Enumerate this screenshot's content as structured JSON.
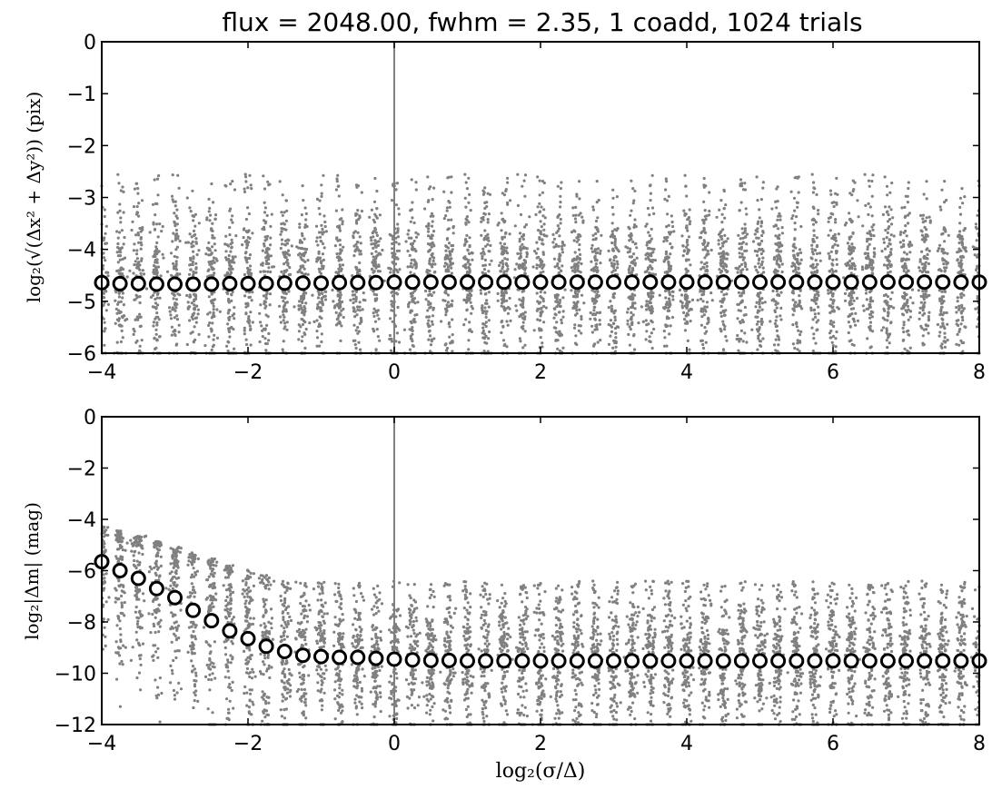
{
  "title": "flux = 2048.00, fwhm = 2.35, 1 coadd, 1024 trials",
  "colors": {
    "scatter": "#808080",
    "marker_edge": "#000000",
    "marker_fill": "#ffffff",
    "vline": "#808080"
  },
  "chart_data": [
    {
      "type": "scatter",
      "title": "flux = 2048.00, fwhm = 2.35, 1 coadd, 1024 trials",
      "xlabel": "log₂(σ/Δ)",
      "ylabel": "log₂(√(Δx² + Δy²)) (pix)",
      "xlim": [
        -4,
        8
      ],
      "ylim": [
        -6,
        0
      ],
      "x_ticks": [
        "−4",
        "−2",
        "0",
        "2",
        "4",
        "6",
        "8"
      ],
      "y_ticks": [
        "0",
        "−1",
        "−2",
        "−3",
        "−4",
        "−5",
        "−6"
      ],
      "vertical_line_x": 0,
      "grid": false,
      "series": [
        {
          "marker": "open-circle",
          "x": [
            -4.0,
            -3.75,
            -3.5,
            -3.25,
            -3.0,
            -2.75,
            -2.5,
            -2.25,
            -2.0,
            -1.75,
            -1.5,
            -1.25,
            -1.0,
            -0.75,
            -0.5,
            -0.25,
            0.0,
            0.25,
            0.5,
            0.75,
            1.0,
            1.25,
            1.5,
            1.75,
            2.0,
            2.25,
            2.5,
            2.75,
            3.0,
            3.25,
            3.5,
            3.75,
            4.0,
            4.25,
            4.5,
            4.75,
            5.0,
            5.25,
            5.5,
            5.75,
            6.0,
            6.25,
            6.5,
            6.75,
            7.0,
            7.25,
            7.5,
            7.75,
            8.0
          ],
          "y": [
            -4.64,
            -4.66,
            -4.66,
            -4.67,
            -4.67,
            -4.67,
            -4.67,
            -4.66,
            -4.66,
            -4.66,
            -4.65,
            -4.65,
            -4.65,
            -4.64,
            -4.64,
            -4.64,
            -4.63,
            -4.63,
            -4.63,
            -4.63,
            -4.63,
            -4.63,
            -4.63,
            -4.63,
            -4.63,
            -4.63,
            -4.63,
            -4.63,
            -4.63,
            -4.63,
            -4.63,
            -4.63,
            -4.63,
            -4.63,
            -4.63,
            -4.63,
            -4.63,
            -4.63,
            -4.63,
            -4.63,
            -4.63,
            -4.63,
            -4.63,
            -4.63,
            -4.63,
            -4.63,
            -4.63,
            -4.63,
            -4.63
          ]
        },
        {
          "marker": "dot-cloud",
          "x_centers": [
            -4.0,
            -3.75,
            -3.5,
            -3.25,
            -3.0,
            -2.75,
            -2.5,
            -2.25,
            -2.0,
            -1.75,
            -1.5,
            -1.25,
            -1.0,
            -0.75,
            -0.5,
            -0.25,
            0.0,
            0.25,
            0.5,
            0.75,
            1.0,
            1.25,
            1.5,
            1.75,
            2.0,
            2.25,
            2.5,
            2.75,
            3.0,
            3.25,
            3.5,
            3.75,
            4.0,
            4.25,
            4.5,
            4.75,
            5.0,
            5.25,
            5.5,
            5.75,
            6.0,
            6.25,
            6.5,
            6.75,
            7.0,
            7.25,
            7.5,
            7.75,
            8.0
          ],
          "y_center": -4.64,
          "y_spread": 0.75,
          "y_max": -2.55,
          "y_min": -6.0
        }
      ]
    },
    {
      "type": "scatter",
      "xlabel": "log₂(σ/Δ)",
      "ylabel": "log₂|Δm| (mag)",
      "xlim": [
        -4,
        8
      ],
      "ylim": [
        -12,
        0
      ],
      "x_ticks": [
        "−4",
        "−2",
        "0",
        "2",
        "4",
        "6",
        "8"
      ],
      "y_ticks": [
        "0",
        "−2",
        "−4",
        "−6",
        "−8",
        "−10",
        "−12"
      ],
      "vertical_line_x": 0,
      "grid": false,
      "series": [
        {
          "marker": "open-circle",
          "x": [
            -4.0,
            -3.75,
            -3.5,
            -3.25,
            -3.0,
            -2.75,
            -2.5,
            -2.25,
            -2.0,
            -1.75,
            -1.5,
            -1.25,
            -1.0,
            -0.75,
            -0.5,
            -0.25,
            0.0,
            0.25,
            0.5,
            0.75,
            1.0,
            1.25,
            1.5,
            1.75,
            2.0,
            2.25,
            2.5,
            2.75,
            3.0,
            3.25,
            3.5,
            3.75,
            4.0,
            4.25,
            4.5,
            4.75,
            5.0,
            5.25,
            5.5,
            5.75,
            6.0,
            6.25,
            6.5,
            6.75,
            7.0,
            7.25,
            7.5,
            7.75,
            8.0
          ],
          "y": [
            -5.65,
            -6.0,
            -6.3,
            -6.7,
            -7.05,
            -7.55,
            -7.95,
            -8.35,
            -8.65,
            -8.95,
            -9.15,
            -9.3,
            -9.35,
            -9.38,
            -9.38,
            -9.42,
            -9.45,
            -9.48,
            -9.5,
            -9.5,
            -9.52,
            -9.52,
            -9.52,
            -9.52,
            -9.52,
            -9.52,
            -9.52,
            -9.52,
            -9.52,
            -9.52,
            -9.52,
            -9.52,
            -9.52,
            -9.52,
            -9.52,
            -9.52,
            -9.52,
            -9.52,
            -9.52,
            -9.52,
            -9.52,
            -9.52,
            -9.52,
            -9.52,
            -9.52,
            -9.52,
            -9.52,
            -9.52,
            -9.52
          ]
        },
        {
          "marker": "dot-cloud",
          "x_centers": [
            -4.0,
            -3.75,
            -3.5,
            -3.25,
            -3.0,
            -2.75,
            -2.5,
            -2.25,
            -2.0,
            -1.75,
            -1.5,
            -1.25,
            -1.0,
            -0.75,
            -0.5,
            -0.25,
            0.0,
            0.25,
            0.5,
            0.75,
            1.0,
            1.25,
            1.5,
            1.75,
            2.0,
            2.25,
            2.5,
            2.75,
            3.0,
            3.25,
            3.5,
            3.75,
            4.0,
            4.25,
            4.5,
            4.75,
            5.0,
            5.25,
            5.5,
            5.75,
            6.0,
            6.25,
            6.5,
            6.75,
            7.0,
            7.25,
            7.5,
            7.75,
            8.0
          ],
          "y_centers": [
            -5.65,
            -6.0,
            -6.3,
            -6.7,
            -7.05,
            -7.55,
            -7.95,
            -8.35,
            -8.65,
            -8.95,
            -9.15,
            -9.3,
            -9.35,
            -9.38,
            -9.38,
            -9.42,
            -9.45,
            -9.48,
            -9.5,
            -9.5,
            -9.52,
            -9.52,
            -9.52,
            -9.52,
            -9.52,
            -9.52,
            -9.52,
            -9.52,
            -9.52,
            -9.52,
            -9.52,
            -9.52,
            -9.52,
            -9.52,
            -9.52,
            -9.52,
            -9.52,
            -9.52,
            -9.52,
            -9.52,
            -9.52,
            -9.52,
            -9.52,
            -9.52,
            -9.52,
            -9.52,
            -9.52,
            -9.52,
            -9.52
          ],
          "y_spread": 1.4,
          "y_max_start": -4.2,
          "y_max_end": -6.4,
          "y_min": -12.0
        }
      ]
    }
  ]
}
